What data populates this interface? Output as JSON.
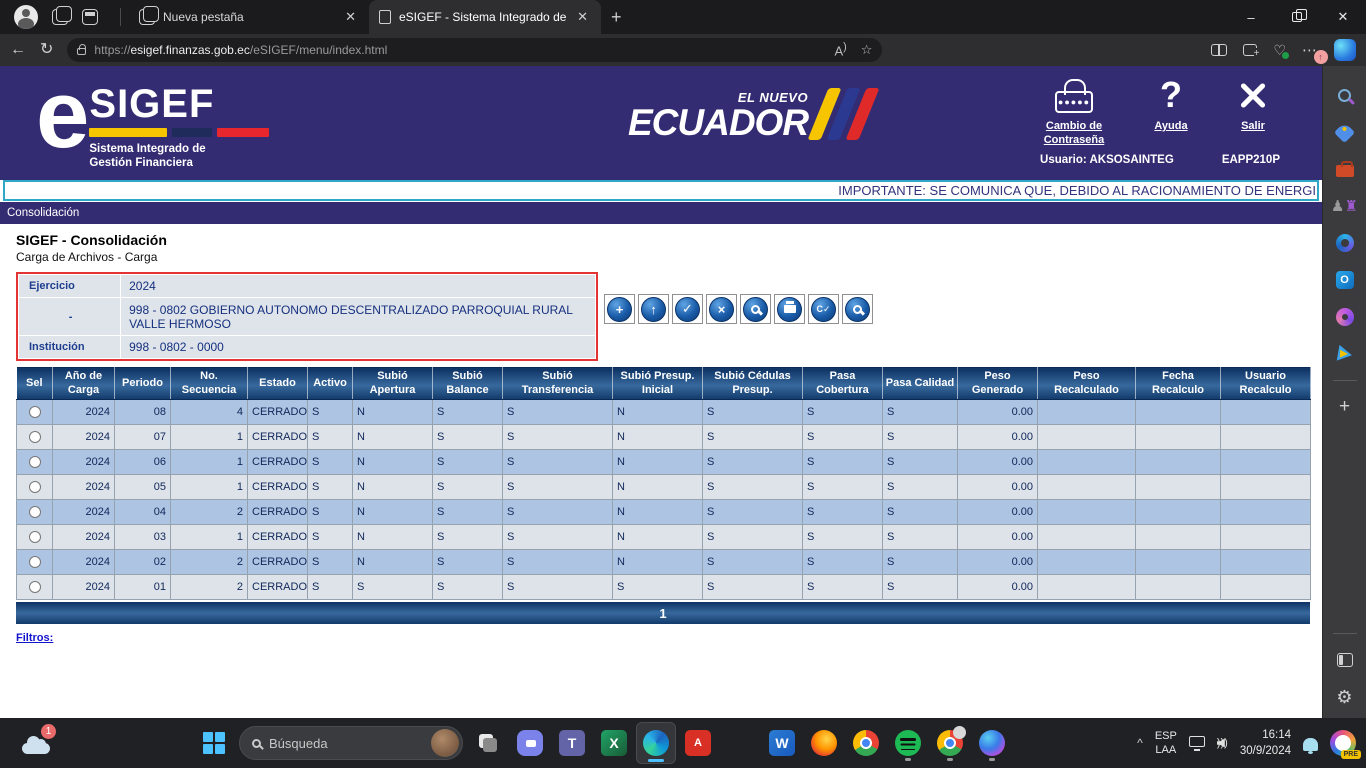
{
  "browser": {
    "tab_inactive": "Nueva pestaña",
    "tab_active": "eSIGEF - Sistema Integrado de Ge",
    "new_tab_glyph": "+",
    "url_scheme": "https://",
    "url_host": "esigef.finanzas.gob.ec",
    "url_path": "/eSIGEF/menu/index.html",
    "back_glyph": "←",
    "refresh_glyph": "↻",
    "read_aloud_glyph": "A",
    "star_glyph": "☆",
    "more_glyph": "⋯",
    "more_badge_glyph": "↑",
    "minimize_glyph": "–",
    "close_glyph": "✕"
  },
  "header": {
    "logo_e": "e",
    "logo_name": "SIGEF",
    "logo_sub1": "Sistema Integrado de",
    "logo_sub2": "Gestión Financiera",
    "ecuador_small": "EL NUEVO",
    "ecuador_big": "ECUADOR",
    "action_password": "Cambio de Contraseña",
    "action_help": "Ayuda",
    "action_help_glyph": "?",
    "action_exit": "Salir",
    "user": "Usuario: AKSOSAINTEG",
    "terminal": "EAPP210P"
  },
  "marquee_text": "IMPORTANTE: SE COMUNICA QUE, DEBIDO AL RACIONAMIENTO DE ENERGI",
  "menu_item": "Consolidación",
  "page": {
    "title": "SIGEF - Consolidación",
    "subtitle": "Carga de Archivos - Carga",
    "form_rows": [
      {
        "label": "Ejercicio",
        "value": "2024"
      },
      {
        "label": "-",
        "value": "998 - 0802 GOBIERNO AUTONOMO DESCENTRALIZADO PARROQUIAL RURAL VALLE HERMOSO"
      },
      {
        "label": "Institución",
        "value": "998 - 0802 - 0000"
      }
    ],
    "toolbar": [
      {
        "name": "create-button",
        "icon": "plus"
      },
      {
        "name": "upload-button",
        "icon": "up"
      },
      {
        "name": "validate-button",
        "icon": "check"
      },
      {
        "name": "delete-button",
        "icon": "x"
      },
      {
        "name": "preview-button",
        "icon": "mag"
      },
      {
        "name": "print-button",
        "icon": "print"
      },
      {
        "name": "approve-button",
        "icon": "c-check"
      },
      {
        "name": "search-button",
        "icon": "mag"
      }
    ],
    "table": {
      "headers": [
        "Sel",
        "Año de Carga",
        "Periodo",
        "No. Secuencia",
        "Estado",
        "Activo",
        "Subió Apertura",
        "Subió Balance",
        "Subió Transferencia",
        "Subió Presup. Inicial",
        "Subió Cédulas Presup.",
        "Pasa Cobertura",
        "Pasa Calidad",
        "Peso Generado",
        "Peso Recalculado",
        "Fecha Recalculo",
        "Usuario Recalculo"
      ],
      "rows": [
        [
          "2024",
          "08",
          "4",
          "CERRADO",
          "S",
          "N",
          "S",
          "S",
          "N",
          "S",
          "S",
          "S",
          "0.00",
          "",
          "",
          ""
        ],
        [
          "2024",
          "07",
          "1",
          "CERRADO",
          "S",
          "N",
          "S",
          "S",
          "N",
          "S",
          "S",
          "S",
          "0.00",
          "",
          "",
          ""
        ],
        [
          "2024",
          "06",
          "1",
          "CERRADO",
          "S",
          "N",
          "S",
          "S",
          "N",
          "S",
          "S",
          "S",
          "0.00",
          "",
          "",
          ""
        ],
        [
          "2024",
          "05",
          "1",
          "CERRADO",
          "S",
          "N",
          "S",
          "S",
          "N",
          "S",
          "S",
          "S",
          "0.00",
          "",
          "",
          ""
        ],
        [
          "2024",
          "04",
          "2",
          "CERRADO",
          "S",
          "N",
          "S",
          "S",
          "N",
          "S",
          "S",
          "S",
          "0.00",
          "",
          "",
          ""
        ],
        [
          "2024",
          "03",
          "1",
          "CERRADO",
          "S",
          "N",
          "S",
          "S",
          "N",
          "S",
          "S",
          "S",
          "0.00",
          "",
          "",
          ""
        ],
        [
          "2024",
          "02",
          "2",
          "CERRADO",
          "S",
          "N",
          "S",
          "S",
          "N",
          "S",
          "S",
          "S",
          "0.00",
          "",
          "",
          ""
        ],
        [
          "2024",
          "01",
          "2",
          "CERRADO",
          "S",
          "S",
          "S",
          "S",
          "S",
          "S",
          "S",
          "S",
          "0.00",
          "",
          "",
          ""
        ]
      ]
    },
    "pagination": "1",
    "filters_label": "Filtros:"
  },
  "edge_sidebar_icons": [
    "search",
    "shopping",
    "tools",
    "games",
    "m365",
    "outlook",
    "designer",
    "drop",
    "divider",
    "add",
    "spacer",
    "divider",
    "panel",
    "settings"
  ],
  "taskbar": {
    "search_placeholder": "Búsqueda",
    "apps": [
      {
        "name": "task-view",
        "active": false,
        "dot": false
      },
      {
        "name": "chat",
        "active": false,
        "dot": false
      },
      {
        "name": "teams",
        "active": false,
        "dot": false,
        "letter": "T"
      },
      {
        "name": "excel",
        "active": false,
        "dot": false,
        "letter": "X"
      },
      {
        "name": "edge",
        "active": true,
        "dot": false
      },
      {
        "name": "pdf",
        "active": false,
        "dot": false,
        "letter": "A"
      },
      {
        "name": "file-explorer",
        "active": false,
        "dot": false
      },
      {
        "name": "word",
        "active": false,
        "dot": false,
        "letter": "W"
      },
      {
        "name": "firefox",
        "active": false,
        "dot": false
      },
      {
        "name": "chrome",
        "active": false,
        "dot": false
      },
      {
        "name": "spotify",
        "active": false,
        "dot": true
      },
      {
        "name": "chrome-profile",
        "active": false,
        "dot": true
      },
      {
        "name": "paint",
        "active": false,
        "dot": true
      }
    ],
    "weather_badge": "1",
    "lang_line1": "ESP",
    "lang_line2": "LAA",
    "time": "16:14",
    "date": "30/9/2024",
    "chevron": "^",
    "outlook_letter": "O",
    "copilot_badge": "PRE"
  },
  "colors": {
    "header_purple": "#332c72",
    "marquee_border": "#2fa8c8",
    "form_border_red": "#e23434",
    "row_blue": "#adc4e2",
    "row_gray": "#dde3e9",
    "link_blue": "#1414cc",
    "table_header_blue": "#0d3263"
  }
}
